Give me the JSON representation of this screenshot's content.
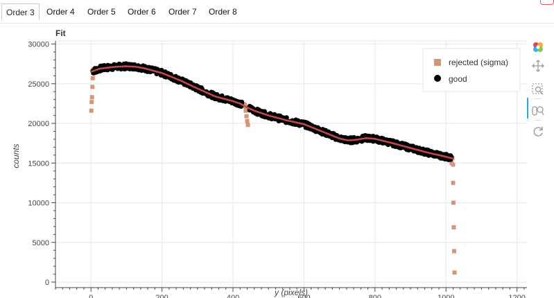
{
  "tabs": [
    {
      "label": "Order 3",
      "active": true
    },
    {
      "label": "Order 4",
      "active": false
    },
    {
      "label": "Order 5",
      "active": false
    },
    {
      "label": "Order 6",
      "active": false
    },
    {
      "label": "Order 7",
      "active": false
    },
    {
      "label": "Order 8",
      "active": false
    }
  ],
  "toolbar": {
    "items": [
      "bokeh-logo-icon",
      "pan-icon",
      "box-zoom-icon",
      "wheel-zoom-icon",
      "reset-icon"
    ]
  },
  "colors": {
    "rejected": "#d4967a",
    "good": "#000000",
    "fit": "#c0474b",
    "grid": "#e6e6e6",
    "toolbar_active": "#26aae1"
  },
  "chart_data": {
    "type": "scatter",
    "title": "Fit",
    "xlabel": "y (pixels)",
    "ylabel": "counts",
    "xlim": [
      -100,
      1230
    ],
    "ylim": [
      -700,
      30400
    ],
    "x_ticks": [
      0,
      200,
      400,
      600,
      800,
      1000,
      1200
    ],
    "y_ticks": [
      0,
      5000,
      10000,
      15000,
      20000,
      25000,
      30000
    ],
    "grid": true,
    "legend_position": "top-right",
    "legend": [
      {
        "label": "rejected (sigma)",
        "marker": "square"
      },
      {
        "label": "good",
        "marker": "circle"
      }
    ],
    "fit_curve": {
      "x": [
        0,
        25,
        50,
        75,
        100,
        125,
        150,
        200,
        250,
        300,
        350,
        400,
        420,
        440,
        460,
        500,
        550,
        600,
        650,
        700,
        725,
        750,
        775,
        800,
        850,
        900,
        950,
        1000,
        1020
      ],
      "y": [
        26500,
        26900,
        27050,
        27150,
        27200,
        27150,
        26950,
        26350,
        25450,
        24400,
        23400,
        22800,
        22500,
        22000,
        21600,
        21000,
        20400,
        19900,
        19000,
        18100,
        17850,
        17950,
        18150,
        18050,
        17500,
        16900,
        16300,
        15800,
        15550
      ]
    },
    "good_band": {
      "description": "dense band of good points following the fit curve",
      "x_range": [
        5,
        1015
      ],
      "scatter_amplitude": 350
    },
    "rejected_points": {
      "x": [
        1,
        2,
        3,
        4,
        5,
        6,
        7,
        433,
        435,
        436,
        438,
        440,
        442,
        1016,
        1018,
        1020,
        1020,
        1021,
        1022,
        1023,
        1024
      ],
      "y": [
        21600,
        22700,
        23300,
        24600,
        25700,
        26400,
        26800,
        22400,
        22100,
        21600,
        20900,
        20300,
        19800,
        15000,
        15600,
        14800,
        12500,
        10000,
        6900,
        3900,
        1200
      ]
    }
  }
}
